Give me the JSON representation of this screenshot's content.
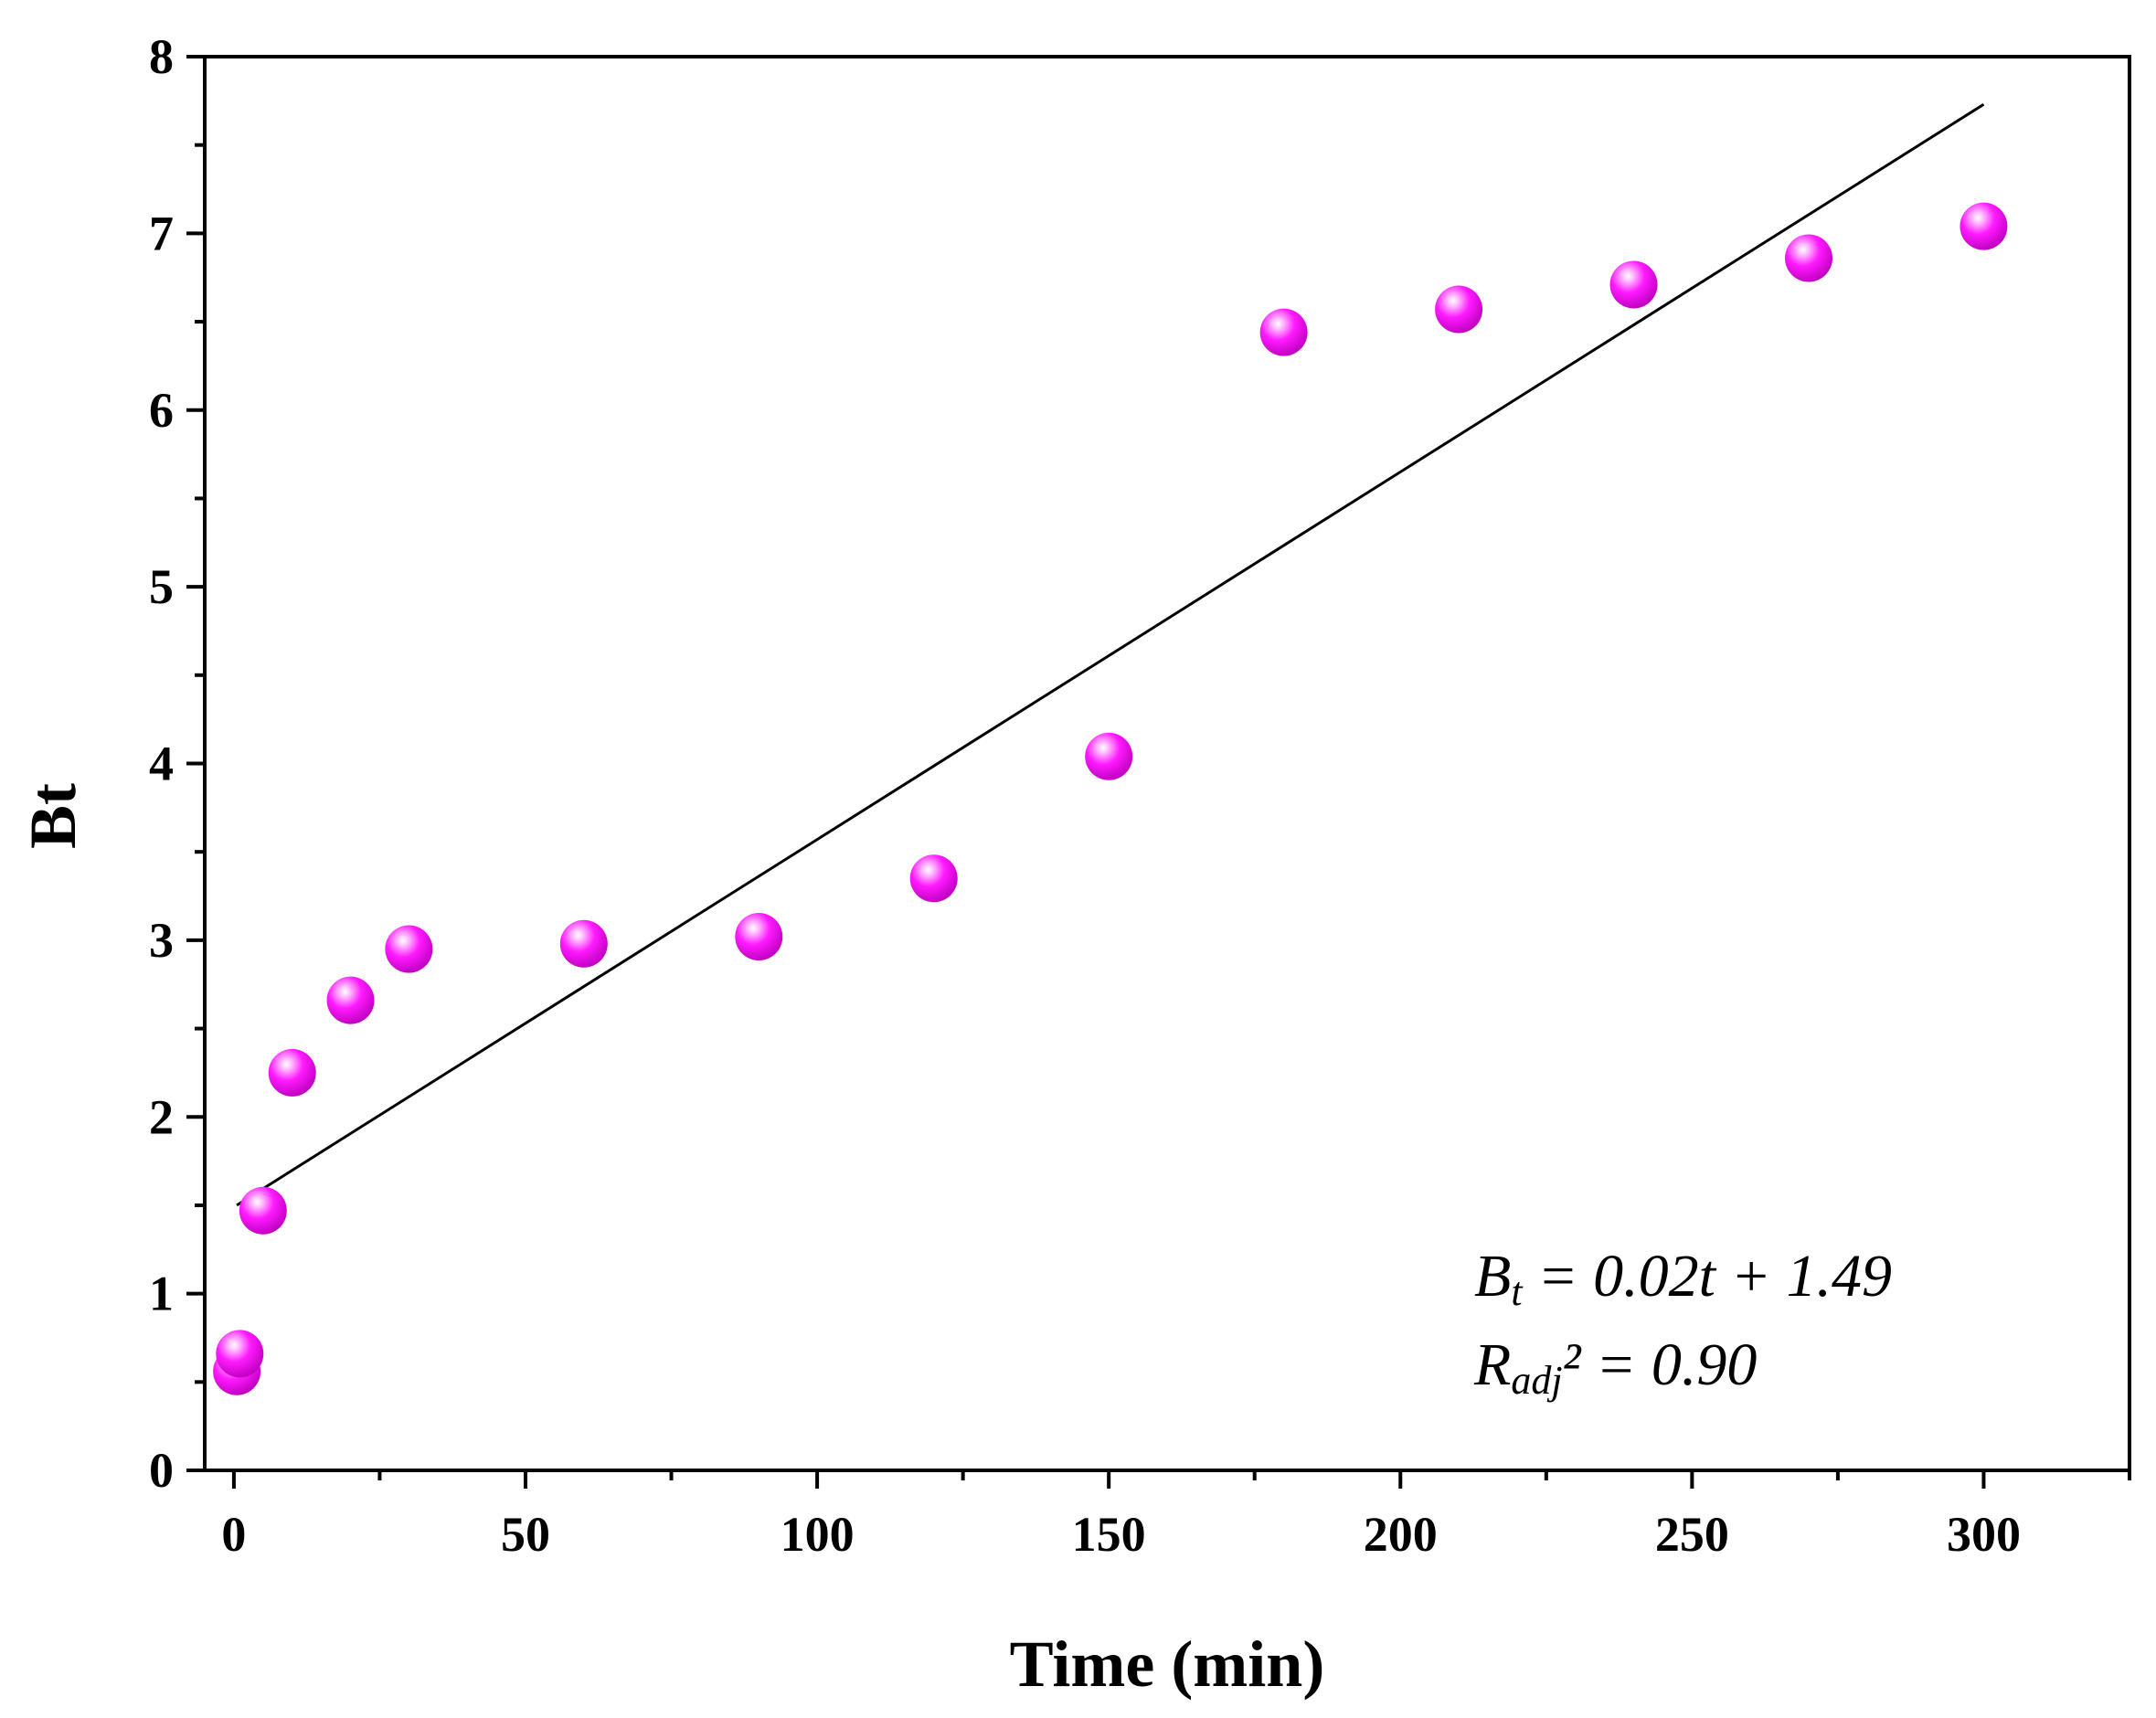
{
  "chart_data": {
    "type": "scatter",
    "xlabel": "Time (min)",
    "ylabel": "Bt",
    "xlim": [
      -5,
      325
    ],
    "ylim": [
      0,
      8
    ],
    "xticks": [
      "0",
      "50",
      "100",
      "150",
      "200",
      "250",
      "300"
    ],
    "yticks": [
      "0",
      "1",
      "2",
      "3",
      "4",
      "5",
      "6",
      "7",
      "8"
    ],
    "series": [
      {
        "name": "Bt",
        "x": [
          0.5,
          1,
          5,
          10,
          20,
          30,
          60,
          90,
          120,
          150,
          180,
          210,
          240,
          270,
          300
        ],
        "y": [
          0.56,
          0.66,
          1.47,
          2.25,
          2.66,
          2.95,
          2.98,
          3.02,
          3.35,
          4.04,
          6.44,
          6.57,
          6.71,
          6.86,
          7.04
        ]
      }
    ],
    "fit": {
      "slope": 0.0208,
      "intercept": 1.49,
      "x_range": [
        0.5,
        300
      ]
    },
    "annotation": {
      "line1": {
        "var": "B",
        "sub": "t",
        "rest": " = 0.02t + 1.49"
      },
      "line2": {
        "var": "R",
        "sub": "adj",
        "rest": "² = 0.90"
      }
    },
    "colors": {
      "marker": "#ff00ff",
      "line": "#000000",
      "axis": "#000000"
    }
  }
}
